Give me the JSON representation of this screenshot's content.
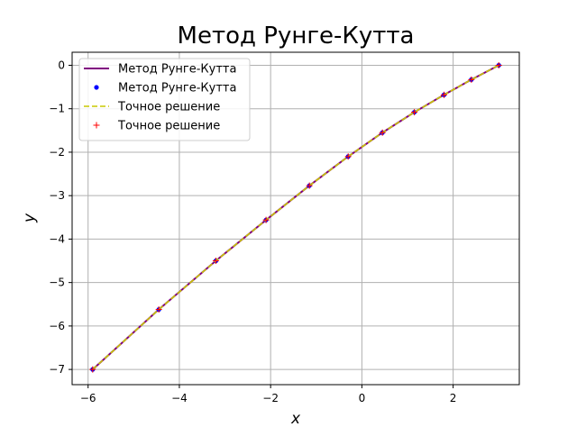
{
  "chart_data": {
    "type": "line",
    "title": "Метод Рунге-Кутта",
    "xlabel": "x",
    "ylabel": "y",
    "xlim": [
      -6.35,
      3.45
    ],
    "ylim": [
      -7.35,
      0.3
    ],
    "xticks": [
      -6,
      -4,
      -2,
      0,
      2
    ],
    "xtick_labels": [
      "−6",
      "−4",
      "−2",
      "0",
      "2"
    ],
    "yticks": [
      0,
      -1,
      -2,
      -3,
      -4,
      -5,
      -6,
      -7
    ],
    "ytick_labels": [
      "0",
      "−1",
      "−2",
      "−3",
      "−4",
      "−5",
      "−6",
      "−7"
    ],
    "grid": true,
    "legend_position": "top-left",
    "x": [
      -5.9,
      -4.45,
      -3.2,
      -2.1,
      -1.15,
      -0.3,
      0.45,
      1.15,
      1.8,
      2.4,
      3.0
    ],
    "series": [
      {
        "name": "Метод Рунге-Кутта",
        "style": "line",
        "color": "#800080",
        "values": [
          -7.0,
          -5.62,
          -4.5,
          -3.56,
          -2.77,
          -2.1,
          -1.55,
          -1.08,
          -0.68,
          -0.33,
          0.0
        ]
      },
      {
        "name": "Метод Рунге-Кутта",
        "style": "points",
        "color": "#0000ff",
        "values": [
          -7.0,
          -5.62,
          -4.5,
          -3.56,
          -2.77,
          -2.1,
          -1.55,
          -1.08,
          -0.68,
          -0.33,
          0.0
        ]
      },
      {
        "name": "Точное решение",
        "style": "dashed",
        "color": "#c8c800",
        "values": [
          -7.0,
          -5.62,
          -4.5,
          -3.56,
          -2.77,
          -2.1,
          -1.55,
          -1.08,
          -0.68,
          -0.33,
          0.0
        ]
      },
      {
        "name": "Точное решение",
        "style": "plus",
        "color": "#ff0000",
        "values": [
          -7.0,
          -5.62,
          -4.5,
          -3.56,
          -2.77,
          -2.1,
          -1.55,
          -1.08,
          -0.68,
          -0.33,
          0.0
        ]
      }
    ]
  }
}
